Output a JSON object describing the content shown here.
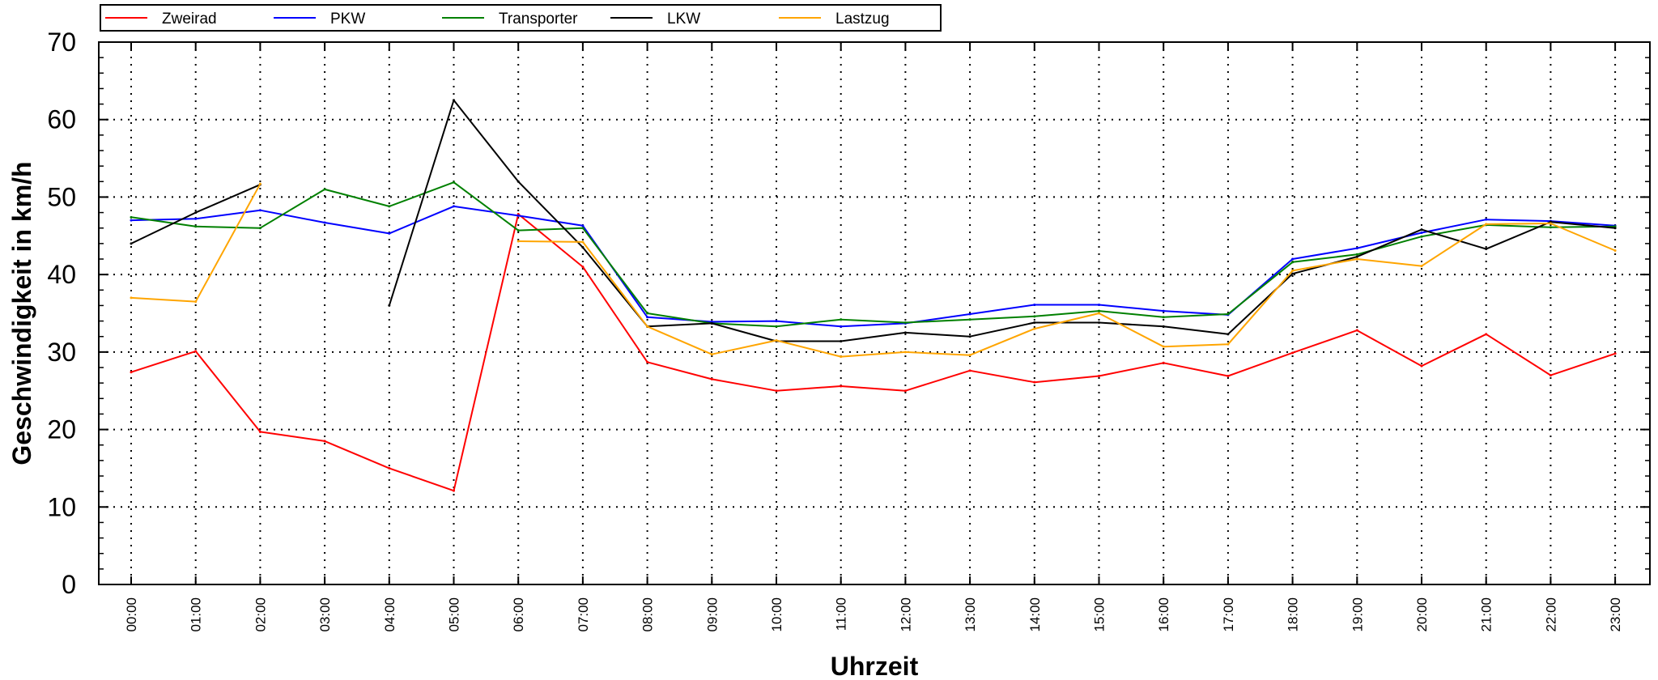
{
  "chart_data": {
    "type": "line",
    "title": "",
    "xlabel": "Uhrzeit",
    "ylabel": "Geschwindigkeit in  km/h",
    "ylim": [
      0,
      70
    ],
    "yticks": [
      "0",
      "10",
      "20",
      "30",
      "40",
      "50",
      "60",
      "70"
    ],
    "grid": true,
    "legend_position": "top-left",
    "categories": [
      "00:00",
      "01:00",
      "02:00",
      "03:00",
      "04:00",
      "05:00",
      "06:00",
      "07:00",
      "08:00",
      "09:00",
      "10:00",
      "11:00",
      "12:00",
      "13:00",
      "14:00",
      "15:00",
      "16:00",
      "17:00",
      "18:00",
      "19:00",
      "20:00",
      "21:00",
      "22:00",
      "23:00"
    ],
    "series": [
      {
        "name": "Zweirad",
        "color": "#ff0000",
        "values": [
          27.4,
          30.1,
          19.7,
          18.5,
          15.0,
          12.1,
          47.8,
          41.0,
          28.7,
          26.5,
          25.0,
          25.6,
          25.0,
          27.6,
          26.1,
          26.9,
          28.6,
          26.9,
          29.9,
          32.8,
          28.2,
          32.3,
          27.0,
          29.8
        ]
      },
      {
        "name": "PKW",
        "color": "#0000ff",
        "values": [
          47.0,
          47.2,
          48.3,
          46.7,
          45.3,
          48.8,
          47.6,
          46.3,
          34.5,
          33.9,
          34.0,
          33.3,
          33.7,
          34.9,
          36.1,
          36.1,
          35.3,
          34.8,
          42.0,
          43.4,
          45.4,
          47.1,
          46.9,
          46.3
        ]
      },
      {
        "name": "Transporter",
        "color": "#008000",
        "values": [
          47.4,
          46.2,
          46.0,
          51.0,
          48.8,
          51.9,
          45.7,
          46.0,
          35.0,
          33.7,
          33.3,
          34.2,
          33.8,
          34.2,
          34.6,
          35.3,
          34.5,
          34.9,
          41.6,
          42.6,
          44.9,
          46.4,
          46.1,
          46.2
        ]
      },
      {
        "name": "LKW",
        "color": "#000000",
        "values": [
          44.0,
          48.0,
          51.6,
          null,
          36.0,
          62.5,
          52.0,
          43.5,
          33.3,
          33.7,
          31.4,
          31.4,
          32.5,
          32.0,
          33.8,
          33.8,
          33.3,
          32.3,
          40.1,
          42.3,
          45.8,
          43.3,
          46.8,
          46.0
        ]
      },
      {
        "name": "Lastzug",
        "color": "#ffa500",
        "values": [
          37.0,
          36.5,
          51.7,
          null,
          null,
          null,
          44.3,
          44.2,
          33.3,
          29.7,
          31.5,
          29.4,
          30.0,
          29.6,
          33.0,
          35.0,
          30.7,
          31.0,
          40.5,
          42.0,
          41.1,
          46.5,
          46.6,
          43.1
        ]
      }
    ]
  }
}
